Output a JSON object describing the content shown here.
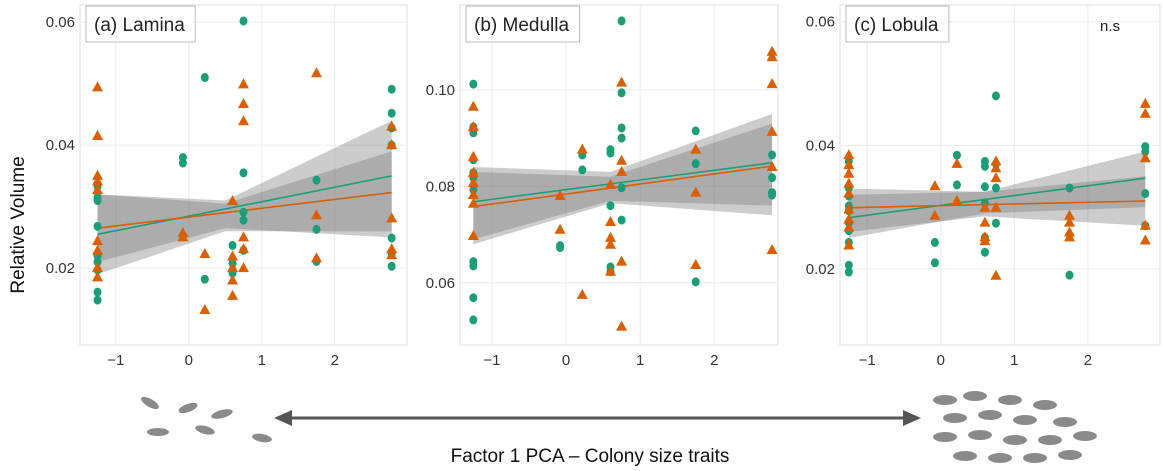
{
  "y_label": "Relative Volume",
  "x_label": "Factor 1 PCA – Colony size traits",
  "chart_data": [
    {
      "type": "scatter",
      "title": "(a) Lamina",
      "xlim": [
        -1.49,
        2.99
      ],
      "ylim": [
        0.0075,
        0.0628
      ],
      "xticks": [
        {
          "value": -1,
          "label": "−1"
        },
        0,
        1,
        2
      ],
      "yticks": [
        0.02,
        0.04,
        0.06
      ],
      "grid": true,
      "series": [
        {
          "color": "#1b9e77",
          "marker": "circle",
          "x": [
            -1.25,
            -1.25,
            -1.25,
            -1.25,
            -1.25,
            -1.25,
            -1.25,
            -1.25,
            -1.25,
            -0.08,
            -0.08,
            0.22,
            0.22,
            0.6,
            0.6,
            0.6,
            0.6,
            0.75,
            0.75,
            0.75,
            0.75,
            0.75,
            1.75,
            1.75,
            1.75,
            2.78,
            2.78,
            2.78,
            2.78,
            2.78,
            2.78,
            2.78
          ],
          "values": [
            0.0333,
            0.0315,
            0.031,
            0.0268,
            0.022,
            0.021,
            0.0197,
            0.0161,
            0.0148,
            0.038,
            0.0371,
            0.051,
            0.0182,
            0.0237,
            0.0208,
            0.0197,
            0.0192,
            0.0602,
            0.0355,
            0.0291,
            0.0278,
            0.0229,
            0.0343,
            0.0263,
            0.0211,
            0.0491,
            0.0452,
            0.0428,
            0.04,
            0.0249,
            0.0224,
            0.0203
          ],
          "fit": {
            "x": [
              -1.25,
              2.78
            ],
            "y": [
              0.0255,
              0.035
            ]
          },
          "band": {
            "x": [
              -1.25,
              0.5,
              2.78
            ],
            "lower": [
              0.019,
              0.026,
              0.026
            ],
            "upper": [
              0.032,
              0.031,
              0.044
            ]
          }
        },
        {
          "color": "#d95f02",
          "marker": "triangle",
          "x": [
            -1.25,
            -1.25,
            -1.25,
            -1.25,
            -1.25,
            -1.25,
            -1.25,
            -1.25,
            -1.25,
            -0.08,
            -0.08,
            0.22,
            0.22,
            0.6,
            0.6,
            0.6,
            0.6,
            0.6,
            0.75,
            0.75,
            0.75,
            0.75,
            0.75,
            0.75,
            1.75,
            1.75,
            1.75,
            2.78,
            2.78,
            2.78,
            2.78,
            2.78
          ],
          "values": [
            0.0494,
            0.0415,
            0.035,
            0.0341,
            0.0327,
            0.0244,
            0.0228,
            0.02,
            0.0185,
            0.0257,
            0.025,
            0.0223,
            0.0132,
            0.0309,
            0.0219,
            0.02,
            0.018,
            0.0155,
            0.0499,
            0.0467,
            0.0439,
            0.025,
            0.0231,
            0.02,
            0.0517,
            0.0286,
            0.0216,
            0.043,
            0.04,
            0.0281,
            0.0231,
            0.0221
          ],
          "fit": {
            "x": [
              -1.25,
              2.78
            ],
            "y": [
              0.0265,
              0.0323
            ]
          },
          "band": {
            "x": [
              -1.25,
              0.5,
              2.78
            ],
            "lower": [
              0.021,
              0.0265,
              0.025
            ],
            "upper": [
              0.032,
              0.0305,
              0.039
            ]
          }
        }
      ]
    },
    {
      "type": "scatter",
      "title": "(b) Medulla",
      "xlim": [
        -1.43,
        2.86
      ],
      "ylim": [
        0.0471,
        0.1176
      ],
      "xticks": [
        {
          "value": -1,
          "label": "−1"
        },
        0,
        1,
        2
      ],
      "yticks": [
        0.06,
        0.08,
        {
          "value": 0.1,
          "label": "0.10"
        }
      ],
      "grid": true,
      "series": [
        {
          "color": "#1b9e77",
          "marker": "circle",
          "x": [
            -1.25,
            -1.25,
            -1.25,
            -1.25,
            -1.25,
            -1.25,
            -1.25,
            -1.25,
            -1.25,
            -1.25,
            -1.25,
            -0.08,
            -0.08,
            0.22,
            0.22,
            0.6,
            0.6,
            0.6,
            0.6,
            0.6,
            0.75,
            0.75,
            0.75,
            0.75,
            0.75,
            0.75,
            1.75,
            1.75,
            1.75,
            2.78,
            2.78,
            2.78,
            2.78
          ],
          "values": [
            0.1012,
            0.0923,
            0.0911,
            0.0855,
            0.0828,
            0.0818,
            0.0793,
            0.0644,
            0.0635,
            0.0569,
            0.0523,
            0.0677,
            0.0673,
            0.0865,
            0.0834,
            0.0876,
            0.0869,
            0.076,
            0.0633,
            0.0623,
            0.1143,
            0.0994,
            0.0921,
            0.09,
            0.0797,
            0.073,
            0.0915,
            0.0847,
            0.0602,
            0.0865,
            0.0818,
            0.0787,
            0.0782
          ],
          "fit": {
            "x": [
              -1.25,
              2.78
            ],
            "y": [
              0.0768,
              0.0849
            ]
          },
          "band": {
            "x": [
              -1.25,
              0.6,
              2.78
            ],
            "lower": [
              0.069,
              0.077,
              0.076
            ],
            "upper": [
              0.084,
              0.083,
              0.095
            ]
          }
        },
        {
          "color": "#d95f02",
          "marker": "triangle",
          "x": [
            -1.25,
            -1.25,
            -1.25,
            -1.25,
            -1.25,
            -1.25,
            -1.25,
            -1.25,
            -0.08,
            -0.08,
            0.22,
            0.22,
            0.6,
            0.6,
            0.6,
            0.6,
            0.6,
            0.75,
            0.75,
            0.75,
            0.75,
            0.75,
            1.75,
            1.75,
            1.75,
            2.78,
            2.78,
            2.78,
            2.78,
            2.78,
            2.78
          ],
          "values": [
            0.0965,
            0.0923,
            0.0861,
            0.0828,
            0.0807,
            0.0782,
            0.0764,
            0.0697,
            0.078,
            0.071,
            0.0876,
            0.0575,
            0.0803,
            0.0726,
            0.0693,
            0.0679,
            0.0623,
            0.1015,
            0.0853,
            0.083,
            0.0644,
            0.0509,
            0.0876,
            0.0787,
            0.0637,
            0.1079,
            0.1068,
            0.1012,
            0.0913,
            0.084,
            0.0668
          ],
          "fit": {
            "x": [
              -1.25,
              2.78
            ],
            "y": [
              0.0758,
              0.0842
            ]
          },
          "band": {
            "x": [
              -1.25,
              0.6,
              2.78
            ],
            "lower": [
              0.068,
              0.0765,
              0.074
            ],
            "upper": [
              0.083,
              0.082,
              0.093
            ]
          }
        }
      ]
    },
    {
      "type": "scatter",
      "title": "(c) Lobula",
      "annotation": "n.s",
      "xlim": [
        -1.37,
        2.98
      ],
      "ylim": [
        0.0077,
        0.0627
      ],
      "xticks": [
        {
          "value": -1,
          "label": "−1"
        },
        0,
        1,
        2
      ],
      "yticks": [
        0.02,
        0.04,
        0.06
      ],
      "grid": true,
      "series": [
        {
          "color": "#1b9e77",
          "marker": "circle",
          "x": [
            -1.25,
            -1.25,
            -1.25,
            -1.25,
            -1.25,
            -1.25,
            -1.25,
            -1.25,
            -1.25,
            -1.25,
            -0.08,
            -0.08,
            0.22,
            0.22,
            0.6,
            0.6,
            0.6,
            0.6,
            0.6,
            0.6,
            0.75,
            0.75,
            0.75,
            0.75,
            1.75,
            1.75,
            2.78,
            2.78,
            2.78,
            2.78
          ],
          "values": [
            0.0374,
            0.0331,
            0.0318,
            0.0302,
            0.0294,
            0.0275,
            0.0262,
            0.0243,
            0.0206,
            0.0195,
            0.0243,
            0.021,
            0.0384,
            0.0336,
            0.0374,
            0.0366,
            0.0333,
            0.0307,
            0.0251,
            0.0227,
            0.048,
            0.037,
            0.0331,
            0.0274,
            0.0331,
            0.019,
            0.0398,
            0.039,
            0.0322,
            0.027
          ],
          "fit": {
            "x": [
              -1.25,
              2.78
            ],
            "y": [
              0.0283,
              0.0347
            ]
          },
          "band": {
            "x": [
              -1.25,
              0.6,
              2.78
            ],
            "lower": [
              0.025,
              0.029,
              0.03
            ],
            "upper": [
              0.032,
              0.0325,
              0.039
            ]
          }
        },
        {
          "color": "#d95f02",
          "marker": "triangle",
          "x": [
            -1.25,
            -1.25,
            -1.25,
            -1.25,
            -1.25,
            -1.25,
            -1.25,
            -1.25,
            -1.25,
            -0.08,
            -0.08,
            0.22,
            0.22,
            0.6,
            0.6,
            0.6,
            0.6,
            0.75,
            0.75,
            0.75,
            0.75,
            0.75,
            1.75,
            1.75,
            1.75,
            1.75,
            2.78,
            2.78,
            2.78,
            2.78,
            2.78
          ],
          "values": [
            0.0384,
            0.0368,
            0.0354,
            0.0338,
            0.0322,
            0.0296,
            0.028,
            0.0267,
            0.0238,
            0.0334,
            0.0286,
            0.037,
            0.031,
            0.0299,
            0.0275,
            0.0251,
            0.0245,
            0.0374,
            0.0363,
            0.0347,
            0.0299,
            0.0189,
            0.0286,
            0.0275,
            0.0259,
            0.0251,
            0.0467,
            0.0451,
            0.0379,
            0.027,
            0.0246
          ],
          "fit": {
            "x": [
              -1.25,
              2.78
            ],
            "y": [
              0.0299,
              0.031
            ]
          },
          "band": {
            "x": [
              -1.25,
              0.6,
              2.78
            ],
            "lower": [
              0.026,
              0.0285,
              0.027
            ],
            "upper": [
              0.033,
              0.0325,
              0.035
            ]
          }
        }
      ]
    }
  ]
}
